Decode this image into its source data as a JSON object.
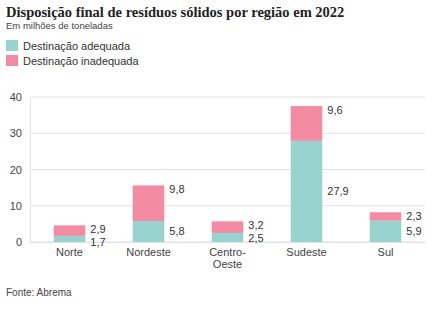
{
  "chart_data": {
    "type": "bar",
    "title": "Disposição final de resíduos sólidos por região em 2022",
    "subtitle": "Em milhões de toneladas",
    "source": "Fonte: Abrema",
    "categories": [
      "Norte",
      "Nordeste",
      "Centro-Oeste",
      "Sudeste",
      "Sul"
    ],
    "series": [
      {
        "name": "Destinação adequada",
        "color": "#98d3cf",
        "values": [
          1.7,
          5.8,
          2.5,
          27.9,
          5.9
        ],
        "value_labels": [
          "1,7",
          "5,8",
          "2,5",
          "27,9",
          "5,9"
        ]
      },
      {
        "name": "Destinação inadequada",
        "color": "#f38ba2",
        "values": [
          2.9,
          9.8,
          3.2,
          9.6,
          2.3
        ],
        "value_labels": [
          "2,9",
          "9,8",
          "3,2",
          "9,6",
          "2,3"
        ]
      }
    ],
    "stacked": true,
    "data_labels": true,
    "grid": true,
    "legend": "top-left",
    "ylim": [
      0,
      40
    ],
    "yticks": [
      0,
      10,
      20,
      30,
      40
    ]
  }
}
